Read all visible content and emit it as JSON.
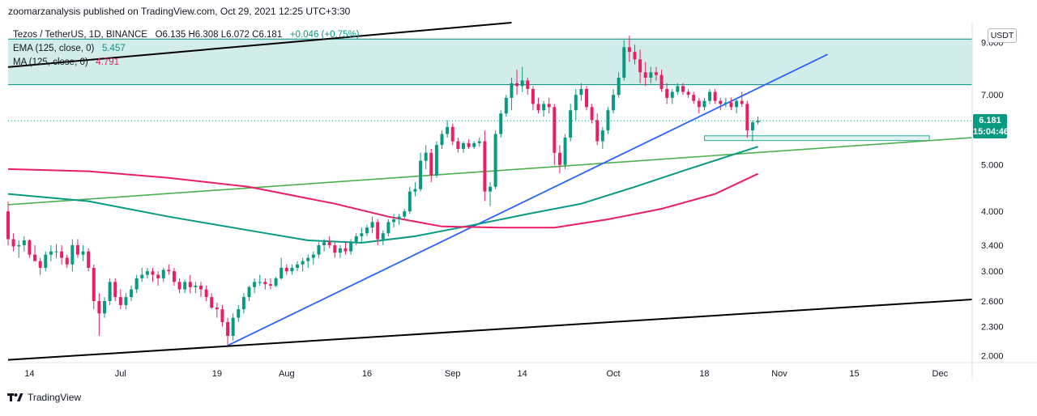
{
  "header": {
    "publisher_line": "zoomarzanalysis published on TradingView.com, Oct 29, 2021 12:25 UTC+3:30"
  },
  "legend": {
    "symbol": "Tezos / TetherUS, 1D, BINANCE",
    "ohlc": "O6.135  H6.308  L6.072  C6.181",
    "change": "+0.046 (+0.75%)",
    "ema_label": "EMA (125, close, 0)",
    "ema_value": "5.457",
    "ma_label": "MA (125, close, 0)",
    "ma_value": "4.791"
  },
  "price_axis": {
    "currency": "USDT",
    "current_price": "6.181",
    "countdown": "15:04:46"
  },
  "footer": {
    "brand": "TradingView"
  },
  "colors": {
    "up": "#26a69a",
    "up_body": "#089981",
    "down": "#e91e63",
    "ema": "#089981",
    "ma": "#e91e63",
    "zone": "#b2dfdb",
    "trend_blue": "#2962ff",
    "trend_green": "#4caf50",
    "channel": "#000000"
  },
  "chart_data": {
    "type": "candlestick",
    "title": "Tezos / TetherUS, 1D, BINANCE",
    "y_scale": "log",
    "y_ticks": [
      "2.000",
      "2.300",
      "2.600",
      "3.000",
      "3.400",
      "4.000",
      "5.000",
      "7.000",
      "9.000"
    ],
    "x_ticks": [
      "14",
      "Jul",
      "19",
      "Aug",
      "16",
      "Sep",
      "14",
      "Oct",
      "18",
      "Nov",
      "15",
      "Dec"
    ],
    "x_range": [
      "2021-06-10",
      "2021-12-07"
    ],
    "y_range": [
      1.95,
      9.9
    ],
    "ohlc": [
      [
        "2021-06-10",
        4.0,
        4.19,
        3.4,
        3.5
      ],
      [
        "2021-06-11",
        3.5,
        3.6,
        3.3,
        3.38
      ],
      [
        "2021-06-12",
        3.38,
        3.48,
        3.2,
        3.4
      ],
      [
        "2021-06-13",
        3.4,
        3.55,
        3.3,
        3.48
      ],
      [
        "2021-06-14",
        3.48,
        3.5,
        3.2,
        3.25
      ],
      [
        "2021-06-15",
        3.25,
        3.4,
        3.15,
        3.15
      ],
      [
        "2021-06-16",
        3.15,
        3.2,
        2.95,
        3.05
      ],
      [
        "2021-06-17",
        3.05,
        3.3,
        3.0,
        3.25
      ],
      [
        "2021-06-18",
        3.25,
        3.4,
        3.15,
        3.3
      ],
      [
        "2021-06-19",
        3.3,
        3.42,
        3.2,
        3.3
      ],
      [
        "2021-06-20",
        3.3,
        3.4,
        3.1,
        3.2
      ],
      [
        "2021-06-21",
        3.2,
        3.25,
        3.05,
        3.1
      ],
      [
        "2021-06-22",
        3.1,
        3.5,
        3.0,
        3.4
      ],
      [
        "2021-06-23",
        3.4,
        3.5,
        3.2,
        3.25
      ],
      [
        "2021-06-24",
        3.25,
        3.4,
        3.15,
        3.3
      ],
      [
        "2021-06-25",
        3.3,
        3.35,
        3.0,
        3.05
      ],
      [
        "2021-06-26",
        3.05,
        3.1,
        2.5,
        2.6
      ],
      [
        "2021-06-27",
        2.6,
        2.7,
        2.2,
        2.45
      ],
      [
        "2021-06-28",
        2.45,
        2.65,
        2.4,
        2.6
      ],
      [
        "2021-06-29",
        2.6,
        2.9,
        2.55,
        2.85
      ],
      [
        "2021-06-30",
        2.85,
        2.9,
        2.6,
        2.65
      ],
      [
        "2021-07-01",
        2.65,
        2.75,
        2.5,
        2.55
      ],
      [
        "2021-07-02",
        2.55,
        2.7,
        2.5,
        2.65
      ],
      [
        "2021-07-03",
        2.65,
        2.8,
        2.6,
        2.75
      ],
      [
        "2021-07-04",
        2.75,
        2.95,
        2.7,
        2.9
      ],
      [
        "2021-07-05",
        2.9,
        3.05,
        2.85,
        2.95
      ],
      [
        "2021-07-06",
        2.95,
        3.05,
        2.9,
        3.0
      ],
      [
        "2021-07-07",
        3.0,
        3.05,
        2.85,
        2.95
      ],
      [
        "2021-07-08",
        2.95,
        3.0,
        2.8,
        2.9
      ],
      [
        "2021-07-09",
        2.9,
        3.05,
        2.85,
        3.02
      ],
      [
        "2021-07-10",
        3.02,
        3.1,
        2.95,
        3.0
      ],
      [
        "2021-07-11",
        3.0,
        3.05,
        2.8,
        2.85
      ],
      [
        "2021-07-12",
        2.85,
        2.9,
        2.7,
        2.75
      ],
      [
        "2021-07-13",
        2.75,
        2.88,
        2.7,
        2.85
      ],
      [
        "2021-07-14",
        2.85,
        2.95,
        2.7,
        2.78
      ],
      [
        "2021-07-15",
        2.78,
        2.85,
        2.7,
        2.8
      ],
      [
        "2021-07-16",
        2.8,
        2.85,
        2.65,
        2.75
      ],
      [
        "2021-07-17",
        2.75,
        2.8,
        2.6,
        2.65
      ],
      [
        "2021-07-18",
        2.65,
        2.7,
        2.5,
        2.52
      ],
      [
        "2021-07-19",
        2.52,
        2.58,
        2.4,
        2.5
      ],
      [
        "2021-07-20",
        2.5,
        2.55,
        2.3,
        2.35
      ],
      [
        "2021-07-21",
        2.35,
        2.4,
        2.1,
        2.2
      ],
      [
        "2021-07-22",
        2.2,
        2.45,
        2.15,
        2.4
      ],
      [
        "2021-07-23",
        2.4,
        2.55,
        2.35,
        2.5
      ],
      [
        "2021-07-24",
        2.5,
        2.7,
        2.45,
        2.65
      ],
      [
        "2021-07-25",
        2.65,
        2.8,
        2.6,
        2.78
      ],
      [
        "2021-07-26",
        2.78,
        2.9,
        2.7,
        2.85
      ],
      [
        "2021-07-27",
        2.85,
        2.95,
        2.8,
        2.85
      ],
      [
        "2021-07-28",
        2.85,
        2.9,
        2.75,
        2.82
      ],
      [
        "2021-07-29",
        2.82,
        2.9,
        2.75,
        2.8
      ],
      [
        "2021-07-30",
        2.8,
        2.92,
        2.78,
        2.9
      ],
      [
        "2021-07-31",
        2.9,
        3.2,
        2.88,
        3.05
      ],
      [
        "2021-08-01",
        3.05,
        3.1,
        2.95,
        3.0
      ],
      [
        "2021-08-02",
        3.0,
        3.1,
        2.95,
        3.05
      ],
      [
        "2021-08-03",
        3.05,
        3.15,
        3.0,
        3.1
      ],
      [
        "2021-08-04",
        3.1,
        3.2,
        3.0,
        3.15
      ],
      [
        "2021-08-05",
        3.15,
        3.25,
        3.05,
        3.2
      ],
      [
        "2021-08-06",
        3.2,
        3.3,
        3.1,
        3.25
      ],
      [
        "2021-08-07",
        3.25,
        3.45,
        3.2,
        3.4
      ],
      [
        "2021-08-08",
        3.4,
        3.5,
        3.3,
        3.45
      ],
      [
        "2021-08-09",
        3.45,
        3.55,
        3.35,
        3.4
      ],
      [
        "2021-08-10",
        3.4,
        3.45,
        3.2,
        3.28
      ],
      [
        "2021-08-11",
        3.28,
        3.4,
        3.2,
        3.35
      ],
      [
        "2021-08-12",
        3.35,
        3.45,
        3.25,
        3.3
      ],
      [
        "2021-08-13",
        3.3,
        3.5,
        3.25,
        3.45
      ],
      [
        "2021-08-14",
        3.45,
        3.6,
        3.4,
        3.55
      ],
      [
        "2021-08-15",
        3.55,
        3.7,
        3.45,
        3.6
      ],
      [
        "2021-08-16",
        3.6,
        3.75,
        3.55,
        3.7
      ],
      [
        "2021-08-17",
        3.7,
        3.9,
        3.6,
        3.8
      ],
      [
        "2021-08-18",
        3.8,
        3.85,
        3.4,
        3.5
      ],
      [
        "2021-08-19",
        3.5,
        3.65,
        3.4,
        3.6
      ],
      [
        "2021-08-20",
        3.6,
        3.85,
        3.55,
        3.8
      ],
      [
        "2021-08-21",
        3.8,
        3.95,
        3.7,
        3.85
      ],
      [
        "2021-08-22",
        3.85,
        3.95,
        3.75,
        3.9
      ],
      [
        "2021-08-23",
        3.9,
        4.05,
        3.85,
        4.0
      ],
      [
        "2021-08-24",
        4.0,
        4.5,
        3.95,
        4.4
      ],
      [
        "2021-08-25",
        4.4,
        4.6,
        4.3,
        4.45
      ],
      [
        "2021-08-26",
        4.45,
        5.3,
        4.4,
        5.1
      ],
      [
        "2021-08-27",
        5.1,
        5.5,
        4.9,
        5.3
      ],
      [
        "2021-08-28",
        5.3,
        5.4,
        4.6,
        4.75
      ],
      [
        "2021-08-29",
        4.75,
        5.6,
        4.7,
        5.5
      ],
      [
        "2021-08-30",
        5.5,
        5.9,
        5.4,
        5.8
      ],
      [
        "2021-08-31",
        5.8,
        6.2,
        5.7,
        6.0
      ],
      [
        "2021-09-01",
        6.0,
        6.1,
        5.5,
        5.6
      ],
      [
        "2021-09-02",
        5.6,
        5.7,
        5.3,
        5.4
      ],
      [
        "2021-09-03",
        5.4,
        5.6,
        5.3,
        5.55
      ],
      [
        "2021-09-04",
        5.55,
        5.65,
        5.4,
        5.45
      ],
      [
        "2021-09-05",
        5.45,
        5.6,
        5.4,
        5.55
      ],
      [
        "2021-09-06",
        5.55,
        5.7,
        5.45,
        5.6
      ],
      [
        "2021-09-07",
        5.6,
        5.9,
        4.2,
        4.4
      ],
      [
        "2021-09-08",
        4.4,
        4.6,
        4.1,
        4.5
      ],
      [
        "2021-09-09",
        4.5,
        5.9,
        4.45,
        5.8
      ],
      [
        "2021-09-10",
        5.8,
        6.5,
        5.7,
        6.4
      ],
      [
        "2021-09-11",
        6.4,
        7.0,
        6.3,
        6.9
      ],
      [
        "2021-09-12",
        6.9,
        7.6,
        6.5,
        7.4
      ],
      [
        "2021-09-13",
        7.4,
        7.9,
        7.0,
        7.3
      ],
      [
        "2021-09-14",
        7.3,
        8.0,
        7.1,
        7.5
      ],
      [
        "2021-09-15",
        7.5,
        7.6,
        7.0,
        7.2
      ],
      [
        "2021-09-16",
        7.2,
        7.3,
        6.5,
        6.7
      ],
      [
        "2021-09-17",
        6.7,
        6.9,
        6.4,
        6.5
      ],
      [
        "2021-09-18",
        6.5,
        6.8,
        6.3,
        6.7
      ],
      [
        "2021-09-19",
        6.7,
        6.9,
        6.4,
        6.6
      ],
      [
        "2021-09-20",
        6.6,
        6.7,
        5.0,
        5.3
      ],
      [
        "2021-09-21",
        5.3,
        5.5,
        4.8,
        5.0
      ],
      [
        "2021-09-22",
        5.0,
        5.8,
        4.9,
        5.7
      ],
      [
        "2021-09-23",
        5.7,
        6.7,
        5.6,
        6.5
      ],
      [
        "2021-09-24",
        6.5,
        7.2,
        6.2,
        7.0
      ],
      [
        "2021-09-25",
        7.0,
        7.4,
        6.8,
        7.2
      ],
      [
        "2021-09-26",
        7.2,
        7.3,
        6.5,
        6.6
      ],
      [
        "2021-09-27",
        6.6,
        6.7,
        6.1,
        6.2
      ],
      [
        "2021-09-28",
        6.2,
        6.4,
        5.5,
        5.6
      ],
      [
        "2021-09-29",
        5.6,
        6.0,
        5.4,
        5.9
      ],
      [
        "2021-09-30",
        5.9,
        6.6,
        5.8,
        6.5
      ],
      [
        "2021-10-01",
        6.5,
        7.2,
        6.4,
        7.0
      ],
      [
        "2021-10-02",
        7.0,
        7.8,
        6.9,
        7.6
      ],
      [
        "2021-10-03",
        7.6,
        9.1,
        7.5,
        8.8
      ],
      [
        "2021-10-04",
        8.8,
        9.3,
        8.2,
        8.6
      ],
      [
        "2021-10-05",
        8.6,
        8.9,
        8.1,
        8.3
      ],
      [
        "2021-10-06",
        8.3,
        8.7,
        7.4,
        7.8
      ],
      [
        "2021-10-07",
        7.8,
        8.2,
        7.3,
        7.6
      ],
      [
        "2021-10-08",
        7.6,
        8.0,
        7.4,
        7.8
      ],
      [
        "2021-10-09",
        7.8,
        8.0,
        7.5,
        7.7
      ],
      [
        "2021-10-10",
        7.7,
        7.9,
        7.1,
        7.2
      ],
      [
        "2021-10-11",
        7.2,
        7.4,
        6.7,
        6.9
      ],
      [
        "2021-10-12",
        6.9,
        7.2,
        6.7,
        7.1
      ],
      [
        "2021-10-13",
        7.1,
        7.4,
        7.0,
        7.3
      ],
      [
        "2021-10-14",
        7.3,
        7.4,
        7.0,
        7.1
      ],
      [
        "2021-10-15",
        7.1,
        7.2,
        6.9,
        7.0
      ],
      [
        "2021-10-16",
        7.0,
        7.1,
        6.7,
        6.8
      ],
      [
        "2021-10-17",
        6.8,
        6.9,
        6.4,
        6.6
      ],
      [
        "2021-10-18",
        6.6,
        6.9,
        6.5,
        6.8
      ],
      [
        "2021-10-19",
        6.8,
        7.2,
        6.7,
        7.1
      ],
      [
        "2021-10-20",
        7.1,
        7.2,
        6.7,
        6.8
      ],
      [
        "2021-10-21",
        6.8,
        6.9,
        6.5,
        6.7
      ],
      [
        "2021-10-22",
        6.7,
        6.9,
        6.6,
        6.75
      ],
      [
        "2021-10-23",
        6.75,
        6.9,
        6.5,
        6.6
      ],
      [
        "2021-10-24",
        6.6,
        6.9,
        6.4,
        6.8
      ],
      [
        "2021-10-25",
        6.8,
        7.1,
        6.6,
        6.7
      ],
      [
        "2021-10-26",
        6.7,
        6.8,
        5.7,
        5.9
      ],
      [
        "2021-10-27",
        5.9,
        6.2,
        5.6,
        6.135
      ],
      [
        "2021-10-28",
        6.135,
        6.308,
        6.072,
        6.181
      ]
    ],
    "ema_125": [
      [
        "2021-06-10",
        4.35
      ],
      [
        "2021-06-25",
        4.2
      ],
      [
        "2021-07-10",
        3.9
      ],
      [
        "2021-07-25",
        3.65
      ],
      [
        "2021-08-05",
        3.48
      ],
      [
        "2021-08-15",
        3.44
      ],
      [
        "2021-08-25",
        3.55
      ],
      [
        "2021-09-05",
        3.75
      ],
      [
        "2021-09-15",
        3.95
      ],
      [
        "2021-09-25",
        4.15
      ],
      [
        "2021-10-05",
        4.5
      ],
      [
        "2021-10-15",
        4.9
      ],
      [
        "2021-10-28",
        5.457
      ]
    ],
    "ma_125": [
      [
        "2021-06-10",
        4.9
      ],
      [
        "2021-06-25",
        4.85
      ],
      [
        "2021-07-10",
        4.7
      ],
      [
        "2021-07-25",
        4.5
      ],
      [
        "2021-08-10",
        4.15
      ],
      [
        "2021-08-20",
        3.9
      ],
      [
        "2021-08-30",
        3.72
      ],
      [
        "2021-09-10",
        3.7
      ],
      [
        "2021-09-20",
        3.7
      ],
      [
        "2021-09-30",
        3.85
      ],
      [
        "2021-10-10",
        4.05
      ],
      [
        "2021-10-20",
        4.35
      ],
      [
        "2021-10-28",
        4.791
      ]
    ],
    "drawings": {
      "resistance_zone": {
        "from": "2021-06-10",
        "to": "2021-12-07",
        "low": 7.35,
        "high": 9.15
      },
      "support_box": {
        "from": "2021-10-18",
        "to": "2021-11-29",
        "low": 5.62,
        "high": 5.75
      },
      "blue_trendline": [
        [
          "2021-07-21",
          2.1
        ],
        [
          "2021-11-10",
          8.5
        ]
      ],
      "green_trendline": [
        [
          "2021-06-10",
          4.13
        ],
        [
          "2021-12-07",
          5.7
        ]
      ],
      "channel_upper": [
        [
          "2021-06-10",
          8.0
        ],
        [
          "2021-09-12",
          9.9
        ]
      ],
      "channel_lower": [
        [
          "2021-06-10",
          1.96
        ],
        [
          "2021-12-07",
          2.62
        ]
      ],
      "last_price_line": 6.181
    }
  }
}
